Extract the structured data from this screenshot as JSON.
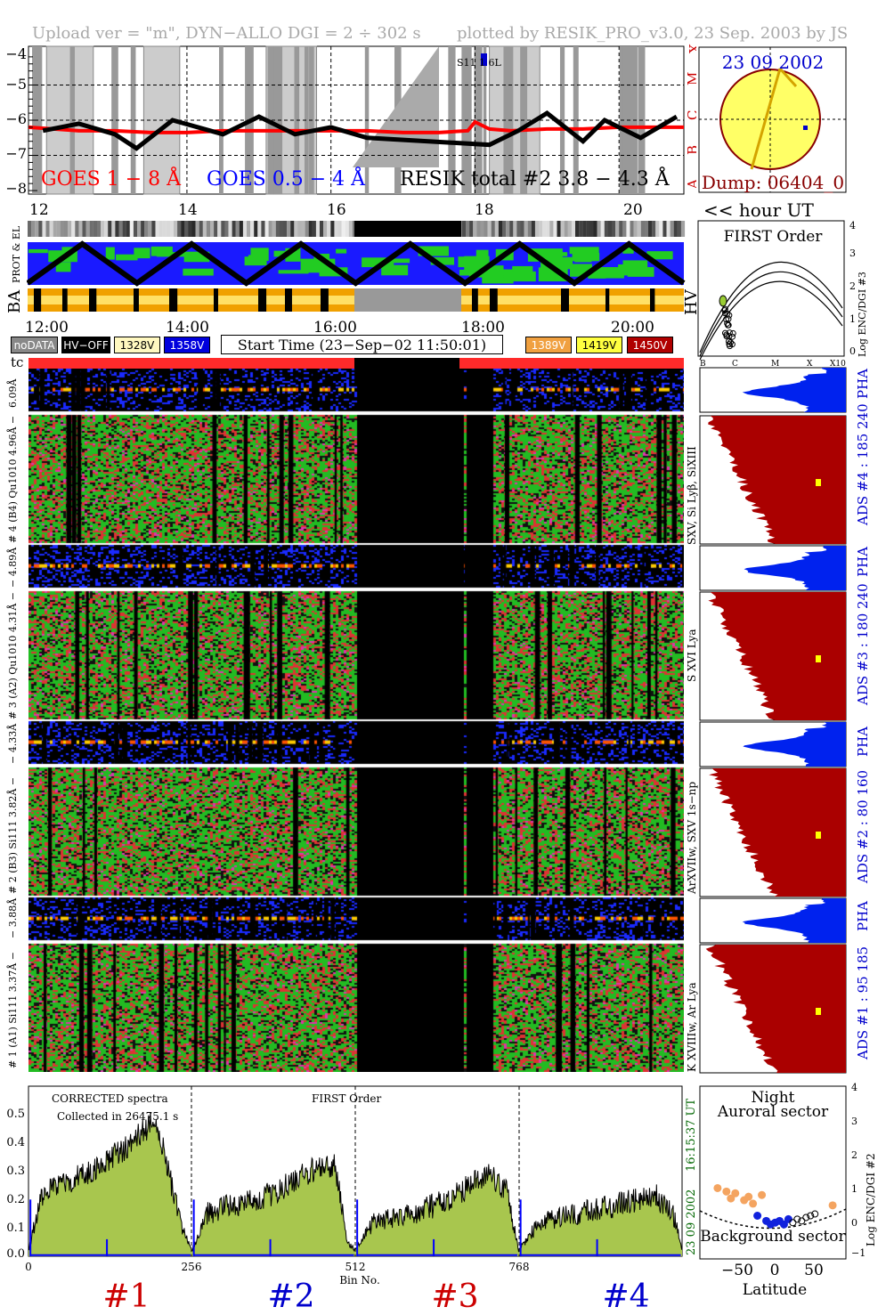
{
  "header": {
    "left": "Upload ver = \"m\", DYN−ALLO DGI =   2 ÷ 302 s",
    "right": "plotted by RESIK_PRO_v3.0, 23 Sep. 2003 by JS"
  },
  "goes_panel": {
    "y_ticks": [
      "−4",
      "−5",
      "−6",
      "−7",
      "−8"
    ],
    "class_labels": [
      "X",
      "M",
      "C",
      "B",
      "A"
    ],
    "legend_goes18": "GOES 1 − 8 Å",
    "legend_goes054": "GOES 0.5 − 4 Å",
    "legend_resik": "RESIK total #2  3.8 − 4.3 Å",
    "marker_label": "S11 1 6L",
    "color_goes18": "#ff0000",
    "color_goes054": "#0000ff"
  },
  "sun_panel": {
    "date": "23 09 2002",
    "dump": "Dump: 06404_0",
    "disk_color": "#ffff66"
  },
  "hour_axis": {
    "ticks": [
      "12",
      "14",
      "16",
      "18",
      "20"
    ],
    "label": "<< hour UT"
  },
  "strip_labels": {
    "prot_el": "PROT & EL",
    "ba": "BA",
    "hv": "HV"
  },
  "first_order_panel": {
    "title": "FIRST Order",
    "ylabel": "Log ENC/DGI #3",
    "y_ticks": [
      "4",
      "3",
      "2",
      "1",
      "0"
    ],
    "x_ticks": [
      "B",
      "C",
      "M",
      "X",
      "X10"
    ]
  },
  "time_axis": {
    "ticks": [
      "12:00",
      "14:00",
      "16:00",
      "18:00",
      "20:00"
    ]
  },
  "legend": {
    "nodata": "noDATA",
    "hvoff": "HV−OFF",
    "v1328": "1328V",
    "v1358": "1358V",
    "start_time": "Start Time (23−Sep−02 11:50:01)",
    "v1389": "1389V",
    "v1419": "1419V",
    "v1450": "1450V",
    "tc": "tc"
  },
  "channels": [
    {
      "pha_left": "6.09Å",
      "main_left": "# 4 (B4) Qu1010 4.96Å −",
      "right_label": "SXV, Si Lyβ, SiXIII",
      "ads": "ADS #4 :   185 240",
      "pha": "PHA"
    },
    {
      "pha_left": "− 4.89Å",
      "main_left": "# 3 (A2) Qu1010  4.31Å −",
      "right_label": "S XVI Lya",
      "ads": "ADS #3 :   180 240",
      "pha": "PHA"
    },
    {
      "pha_left": "− 4.33Å",
      "main_left": "# 2 (B3) Si111  3.82Å −",
      "right_label": "ArXVIIw, SXV 1s−np",
      "ads": "ADS #2 :   80 160",
      "pha": "PHA"
    },
    {
      "pha_left": "− 3.88Å",
      "main_left": "# 1 (A1) Si111  3.37Å −",
      "right_label": "K XVIIIw, Ar Lya",
      "ads": "ADS #1 :   95 185",
      "pha": "PHA"
    }
  ],
  "spectrum_panel": {
    "title1": "CORRECTED spectra",
    "title2": "Collected in 26475.1 s",
    "order": "FIRST Order",
    "time_stamp": "16:15:37 UT",
    "date_stamp": "23 09 2002",
    "xlabel": "Bin No.",
    "y_ticks": [
      "0.5",
      "0.4",
      "0.3",
      "0.2",
      "0.1",
      "0.0"
    ],
    "x_ticks": [
      "0",
      "256",
      "512",
      "768"
    ],
    "channel_labels": [
      "#1",
      "#2",
      "#3",
      "#4"
    ],
    "fill_color": "#a8c64e"
  },
  "latitude_panel": {
    "title1": "Night",
    "title2": "Auroral sector",
    "title3": "Background sector",
    "xlabel": "Latitude",
    "x_ticks": [
      "−50",
      "0",
      "50"
    ],
    "ylabel": "Log ENC/DGI #2",
    "y_ticks": [
      "4",
      "3",
      "2",
      "1",
      "0",
      "−1"
    ]
  },
  "chart_data": [
    {
      "type": "line",
      "title": "",
      "xlabel": "hour UT",
      "ylabel": "",
      "xlim": [
        11.8,
        20.9
      ],
      "ylim": [
        -8.1,
        -3.9
      ],
      "series": [
        {
          "name": "GOES 1 − 8 Å",
          "x": [
            11.8,
            12.5,
            13.0,
            13.5,
            14.0,
            14.5,
            15.0,
            15.5,
            16.0,
            16.5,
            17.0,
            17.5,
            17.9,
            18.0,
            18.2,
            18.5,
            19.0,
            19.5,
            20.0,
            20.5,
            20.9
          ],
          "y": [
            -6.2,
            -6.3,
            -6.3,
            -6.35,
            -6.35,
            -6.3,
            -6.3,
            -6.3,
            -6.3,
            -6.3,
            -6.35,
            -6.35,
            -6.3,
            -6.05,
            -6.25,
            -6.3,
            -6.25,
            -6.25,
            -6.2,
            -6.2,
            -6.2
          ]
        },
        {
          "name": "RESIK total #2  3.8 − 4.3 Å",
          "x": [
            12.0,
            12.5,
            13.0,
            13.3,
            13.8,
            14.5,
            15.0,
            15.5,
            16.0,
            16.5,
            18.2,
            18.6,
            19.0,
            19.5,
            19.8,
            20.3,
            20.8
          ],
          "y": [
            -6.3,
            -6.1,
            -6.4,
            -6.8,
            -6.0,
            -6.4,
            -5.9,
            -6.4,
            -6.2,
            -6.5,
            -6.7,
            -6.3,
            -5.8,
            -6.6,
            -6.0,
            -6.5,
            -5.9
          ]
        }
      ]
    },
    {
      "type": "line",
      "title": "",
      "xlabel": "Bin No.",
      "ylabel": "",
      "xlim": [
        0,
        1024
      ],
      "ylim": [
        0,
        0.6
      ],
      "series": [
        {
          "name": "#1",
          "x": [
            0,
            20,
            50,
            100,
            150,
            200,
            240,
            256
          ],
          "y": [
            0.02,
            0.22,
            0.25,
            0.3,
            0.38,
            0.48,
            0.1,
            0.02
          ]
        },
        {
          "name": "#2",
          "x": [
            256,
            280,
            320,
            380,
            440,
            480,
            500,
            512
          ],
          "y": [
            0.02,
            0.15,
            0.18,
            0.22,
            0.3,
            0.32,
            0.05,
            0.02
          ]
        },
        {
          "name": "#3",
          "x": [
            512,
            540,
            600,
            660,
            720,
            750,
            768
          ],
          "y": [
            0.02,
            0.12,
            0.15,
            0.2,
            0.3,
            0.22,
            0.02
          ]
        },
        {
          "name": "#4",
          "x": [
            768,
            800,
            860,
            920,
            980,
            1010,
            1024
          ],
          "y": [
            0.02,
            0.12,
            0.15,
            0.18,
            0.22,
            0.15,
            0.02
          ]
        }
      ]
    },
    {
      "type": "scatter",
      "title": "",
      "xlabel": "Latitude",
      "ylabel": "Log ENC/DGI #2",
      "xlim": [
        -75,
        90
      ],
      "ylim": [
        -1,
        4
      ],
      "series": [
        {
          "name": "Auroral sector",
          "x": [
            -55,
            -45,
            -40,
            -35,
            -25,
            -20,
            -15,
            -5,
            75
          ],
          "y": [
            1.05,
            0.95,
            0.75,
            0.9,
            0.7,
            0.8,
            0.6,
            0.85,
            0.55
          ]
        },
        {
          "name": "Background sector",
          "x": [
            -10,
            0,
            5,
            10,
            15,
            20,
            25
          ],
          "y": [
            0.25,
            0.1,
            0.0,
            0.05,
            0.1,
            0.0,
            0.15
          ]
        },
        {
          "name": "Night",
          "x": [
            30,
            35,
            40,
            45,
            50,
            55
          ],
          "y": [
            0.05,
            0.15,
            0.1,
            0.2,
            0.25,
            0.3
          ]
        }
      ]
    }
  ]
}
